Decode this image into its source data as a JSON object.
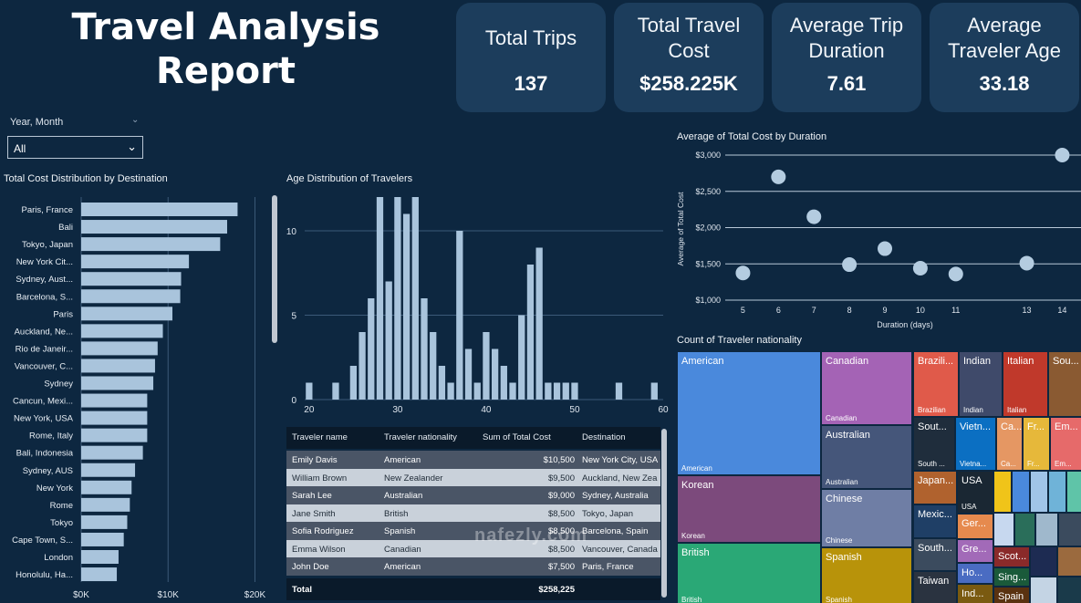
{
  "header": {
    "title": "Travel Analysis Report"
  },
  "kpis": [
    {
      "label": "Total Trips",
      "value": "137"
    },
    {
      "label": "Total Travel Cost",
      "value": "$258.225K"
    },
    {
      "label": "Average Trip Duration",
      "value": "7.61"
    },
    {
      "label": "Average Traveler Age",
      "value": "33.18"
    }
  ],
  "slicer": {
    "label": "Year, Month",
    "value": "All"
  },
  "bar_chart": {
    "title": "Total Cost Distribution by Destination",
    "chart_data": {
      "type": "bar",
      "orientation": "horizontal",
      "categories": [
        "Paris, France",
        "Bali",
        "Tokyo, Japan",
        "New York Cit...",
        "Sydney, Aust...",
        "Barcelona, S...",
        "Paris",
        "Auckland, Ne...",
        "Rio de Janeir...",
        "Vancouver, C...",
        "Sydney",
        "Cancun, Mexi...",
        "New York, USA",
        "Rome, Italy",
        "Bali, Indonesia",
        "Sydney, AUS",
        "New York",
        "Rome",
        "Tokyo",
        "Cape Town, S...",
        "London",
        "Honolulu, Ha..."
      ],
      "values": [
        18000,
        16800,
        16000,
        12400,
        11500,
        11400,
        10500,
        9400,
        8800,
        8500,
        8300,
        7600,
        7600,
        7600,
        7100,
        6200,
        5800,
        5600,
        5300,
        4900,
        4300,
        4100
      ],
      "xlim": [
        0,
        21000
      ],
      "xticks": [
        "$0K",
        "$10K",
        "$20K"
      ],
      "xtick_values": [
        0,
        10000,
        20000
      ],
      "grid": true
    }
  },
  "hist_chart": {
    "title": "Age Distribution of Travelers",
    "chart_data": {
      "type": "bar",
      "x": [
        20,
        23,
        25,
        26,
        27,
        28,
        29,
        30,
        31,
        32,
        33,
        34,
        35,
        36,
        37,
        38,
        39,
        40,
        41,
        42,
        43,
        44,
        45,
        46,
        47,
        48,
        49,
        50,
        55,
        59
      ],
      "values": [
        1,
        1,
        2,
        4,
        6,
        12,
        7,
        12,
        11,
        12,
        6,
        4,
        2,
        1,
        10,
        3,
        1,
        4,
        3,
        2,
        1,
        5,
        8,
        9,
        1,
        1,
        1,
        1,
        1,
        1
      ],
      "ylim": [
        0,
        12
      ],
      "yticks": [
        "0",
        "5",
        "10"
      ],
      "ytick_values": [
        0,
        5,
        10
      ],
      "xlim": [
        19.5,
        60
      ],
      "xticks": [
        "20",
        "30",
        "40",
        "50",
        "60"
      ],
      "xtick_values": [
        20,
        30,
        40,
        50,
        60
      ]
    }
  },
  "table": {
    "headers": [
      "Traveler name",
      "Traveler nationality",
      "Sum of Total Cost",
      "Destination"
    ],
    "rows": [
      [
        "Emily Davis",
        "American",
        "$10,500",
        "New York City, USA"
      ],
      [
        "William Brown",
        "New Zealander",
        "$9,500",
        "Auckland, New Zea"
      ],
      [
        "Sarah Lee",
        "Australian",
        "$9,000",
        "Sydney, Australia"
      ],
      [
        "Jane Smith",
        "British",
        "$8,500",
        "Tokyo, Japan"
      ],
      [
        "Sofia Rodriguez",
        "Spanish",
        "$8,500",
        "Barcelona, Spain"
      ],
      [
        "Emma Wilson",
        "Canadian",
        "$8,500",
        "Vancouver, Canada"
      ],
      [
        "John Doe",
        "American",
        "$7,500",
        "Paris, France"
      ]
    ],
    "total_label": "Total",
    "total_value": "$258,225"
  },
  "scatter_chart": {
    "title": "Average of Total Cost by Duration",
    "chart_data": {
      "type": "scatter",
      "x": [
        5,
        6,
        7,
        8,
        9,
        10,
        11,
        13,
        14
      ],
      "y": [
        1375,
        2700,
        2150,
        1490,
        1710,
        1440,
        1360,
        1510,
        3000
      ],
      "xlabel": "Duration (days)",
      "ylabel": "Average of Total Cost",
      "xlim": [
        4.5,
        14.4
      ],
      "ylim": [
        1000,
        3000
      ],
      "xticks": [
        "5",
        "6",
        "7",
        "8",
        "9",
        "10",
        "11",
        "13",
        "14"
      ],
      "xtick_values": [
        5,
        6,
        7,
        8,
        9,
        10,
        11,
        13,
        14
      ],
      "yticks": [
        "$1,000",
        "$1,500",
        "$2,000",
        "$2,500",
        "$3,000"
      ],
      "ytick_values": [
        1000,
        1500,
        2000,
        2500,
        3000
      ],
      "grid": true
    }
  },
  "treemap": {
    "title": "Count of Traveler nationality",
    "cells": [
      {
        "label": "American",
        "bottom": "American",
        "color": "#4a89dc"
      },
      {
        "label": "Canadian",
        "bottom": "Canadian",
        "color": "#a463b5"
      },
      {
        "label": "Australian",
        "bottom": "Australian",
        "color": "#45567a"
      },
      {
        "label": "Korean",
        "bottom": "Korean",
        "color": "#7c4a7c"
      },
      {
        "label": "Chinese",
        "bottom": "Chinese",
        "color": "#6f7ea5"
      },
      {
        "label": "British",
        "bottom": "British",
        "color": "#2aa876"
      },
      {
        "label": "Spanish",
        "bottom": "Spanish",
        "color": "#b8930a"
      },
      {
        "label": "Brazili...",
        "bottom": "Brazilian",
        "color": "#e05a4a"
      },
      {
        "label": "Indian",
        "bottom": "Indian",
        "color": "#3f4a6a"
      },
      {
        "label": "Italian",
        "bottom": "Italian",
        "color": "#c0392b"
      },
      {
        "label": "Sou...",
        "bottom": "",
        "color": "#8a5a32"
      },
      {
        "label": "Sout...",
        "bottom": "South ...",
        "color": "#1f2d3c"
      },
      {
        "label": "Vietn...",
        "bottom": "Vietna...",
        "color": "#0b6fc2"
      },
      {
        "label": "Ca...",
        "bottom": "Ca...",
        "color": "#e59763"
      },
      {
        "label": "Fr...",
        "bottom": "Fr...",
        "color": "#e6b83a"
      },
      {
        "label": "Em...",
        "bottom": "Em...",
        "color": "#e66a6a"
      },
      {
        "label": "Japan...",
        "bottom": "",
        "color": "#b0622e"
      },
      {
        "label": "USA",
        "bottom": "USA",
        "color": "#1a2733"
      },
      {
        "label": "Mexic...",
        "bottom": "",
        "color": "#1f3f66"
      },
      {
        "label": "Ger...",
        "bottom": "",
        "color": "#e68a4e"
      },
      {
        "label": "South...",
        "bottom": "",
        "color": "#3b4b5e"
      },
      {
        "label": "Gre...",
        "bottom": "",
        "color": "#a26ab8"
      },
      {
        "label": "Ho...",
        "bottom": "",
        "color": "#4a6cc2"
      },
      {
        "label": "Taiwan",
        "bottom": "",
        "color": "#2a3340"
      },
      {
        "label": "Ind...",
        "bottom": "",
        "color": "#7a5a10"
      },
      {
        "label": "Scot...",
        "bottom": "",
        "color": "#8a2a2a"
      },
      {
        "label": "Sing...",
        "bottom": "",
        "color": "#1a5a3a"
      },
      {
        "label": "Spain",
        "bottom": "",
        "color": "#5a3210"
      }
    ],
    "filler_colors": [
      "#f0c419",
      "#4a89dc",
      "#a0c4e8",
      "#6fb3d8",
      "#5fc4a8",
      "#c7d8ef",
      "#2a6e5a",
      "#9fb8cc",
      "#3b4b5e",
      "#1d2b52",
      "#9b6a3e",
      "#c4d4e4",
      "#1a3a4a",
      "#3a2a5a",
      "#2c2c2c"
    ]
  },
  "watermark": {
    "text": "nafezly.com"
  }
}
